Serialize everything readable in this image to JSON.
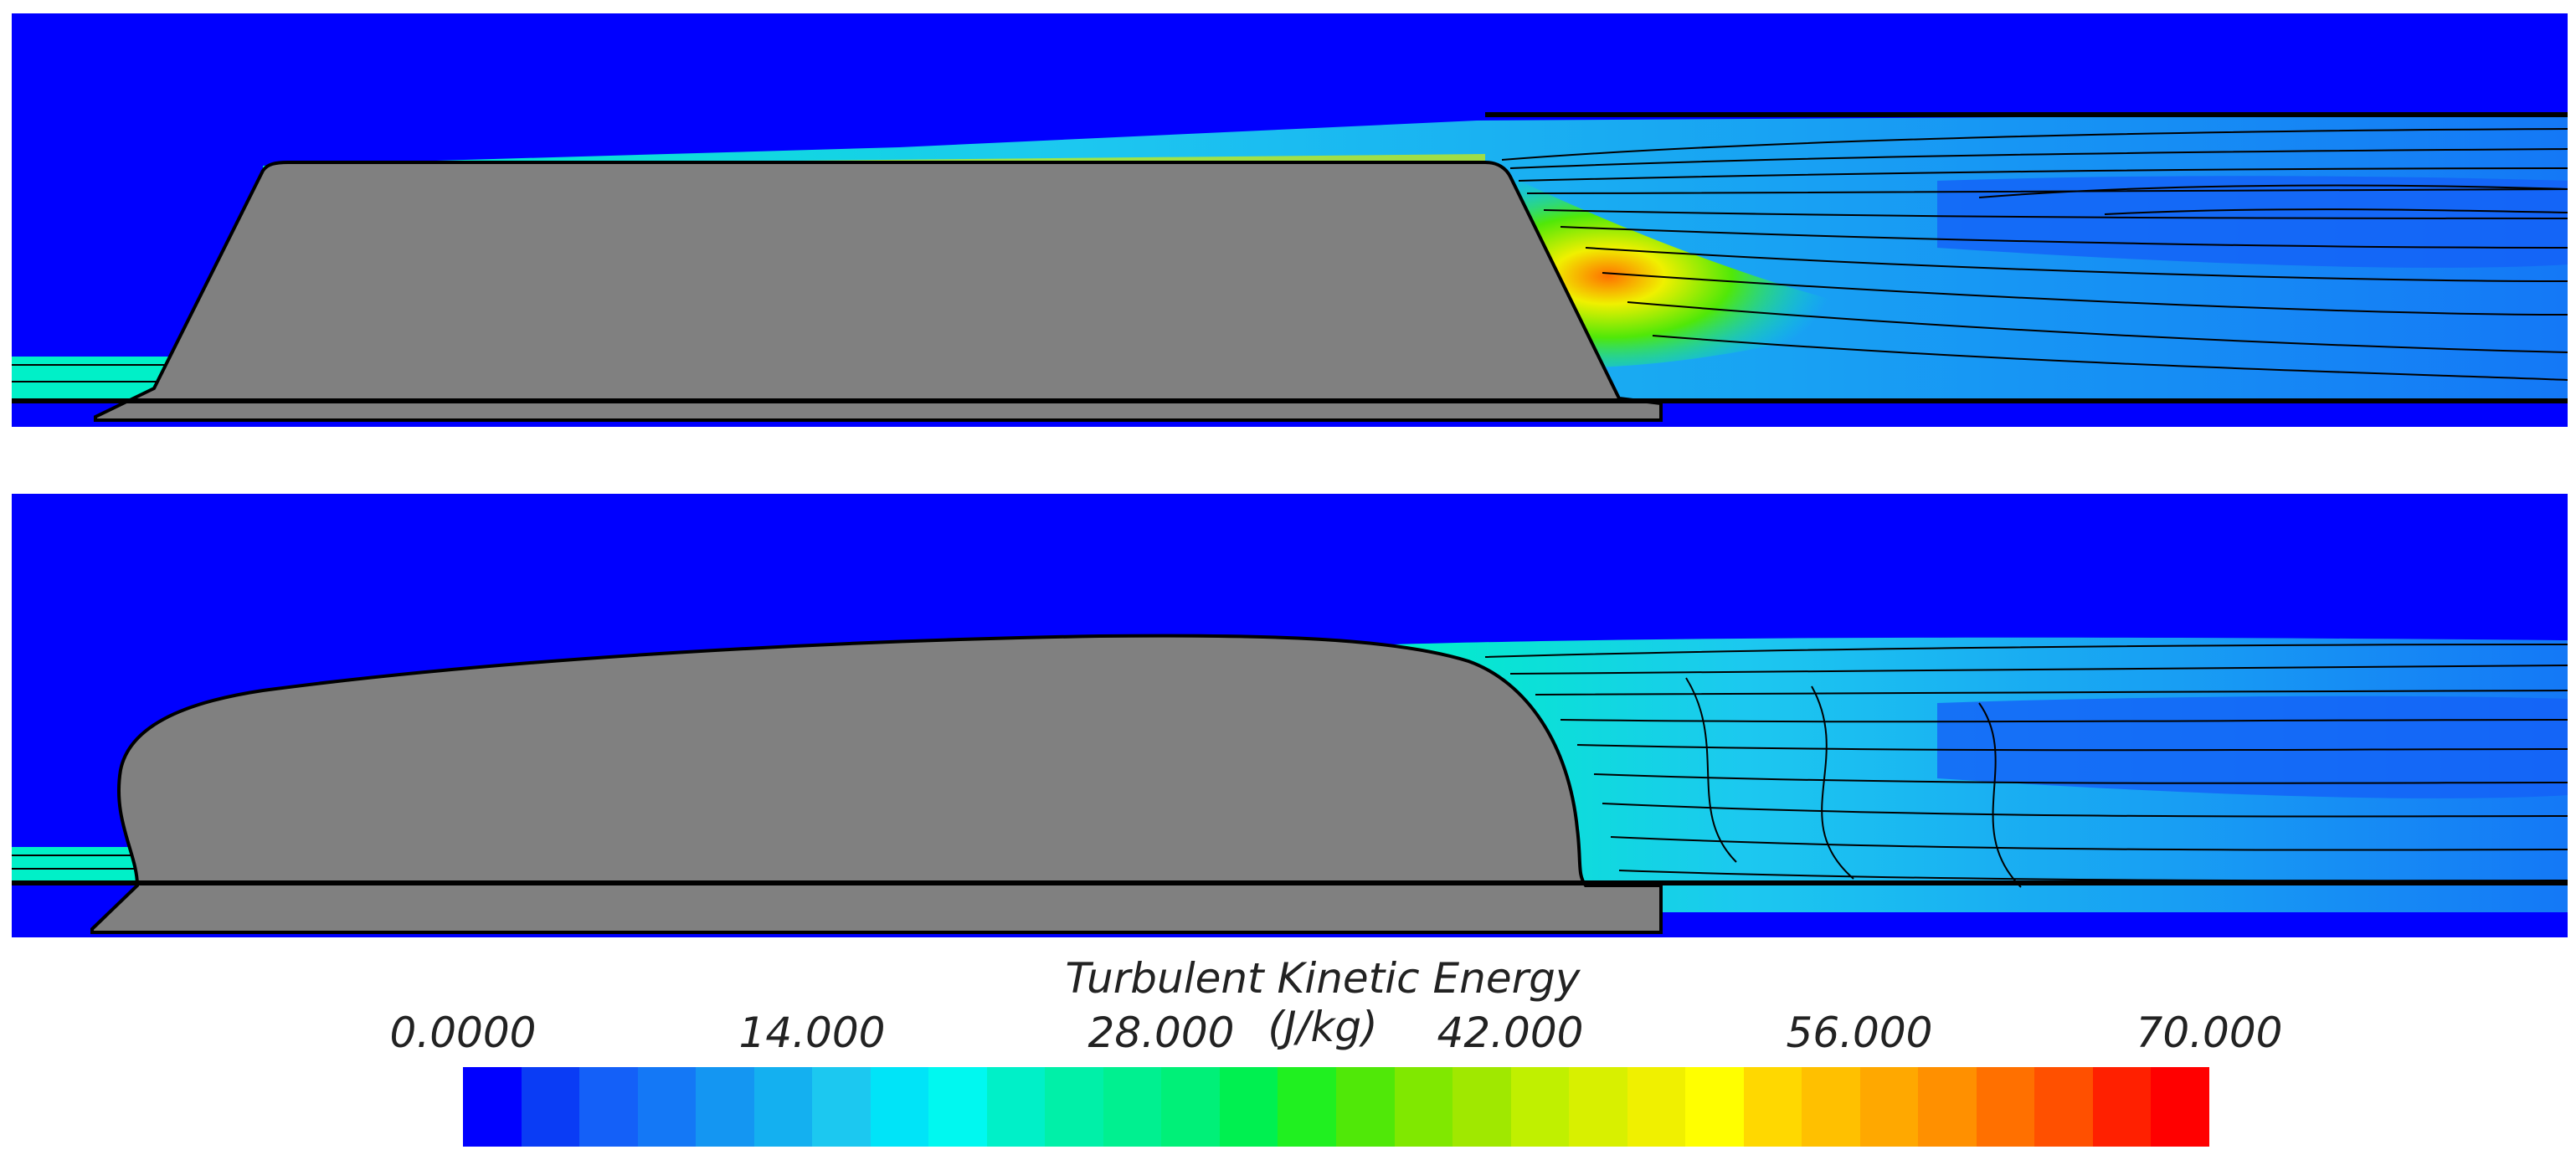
{
  "legend": {
    "title": "Turbulent Kinetic Energy (J/kg)",
    "ticks": [
      "0.0000",
      "14.000",
      "28.000",
      "42.000",
      "56.000",
      "70.000"
    ],
    "min": 0,
    "max": 70,
    "colors": [
      "#0000ff",
      "#0a3cf5",
      "#1460f8",
      "#1478f6",
      "#1496f2",
      "#14b0f0",
      "#1cc8f0",
      "#00e4f8",
      "#00f8f0",
      "#00f0c8",
      "#00f0a8",
      "#00f090",
      "#00f078",
      "#00f050",
      "#20f020",
      "#50e808",
      "#80e800",
      "#a0e800",
      "#c0f000",
      "#d8f000",
      "#f0f000",
      "#ffff00",
      "#ffd800",
      "#ffc000",
      "#ffa800",
      "#ff9000",
      "#ff7000",
      "#ff5000",
      "#ff2000",
      "#ff0000"
    ]
  },
  "colors": {
    "background_flow": "#0000ff",
    "obstacle": "#808080",
    "contour_line": "#000000"
  },
  "panels": [
    {
      "name": "trapezoidal-obstacle"
    },
    {
      "name": "rounded-obstacle"
    }
  ]
}
